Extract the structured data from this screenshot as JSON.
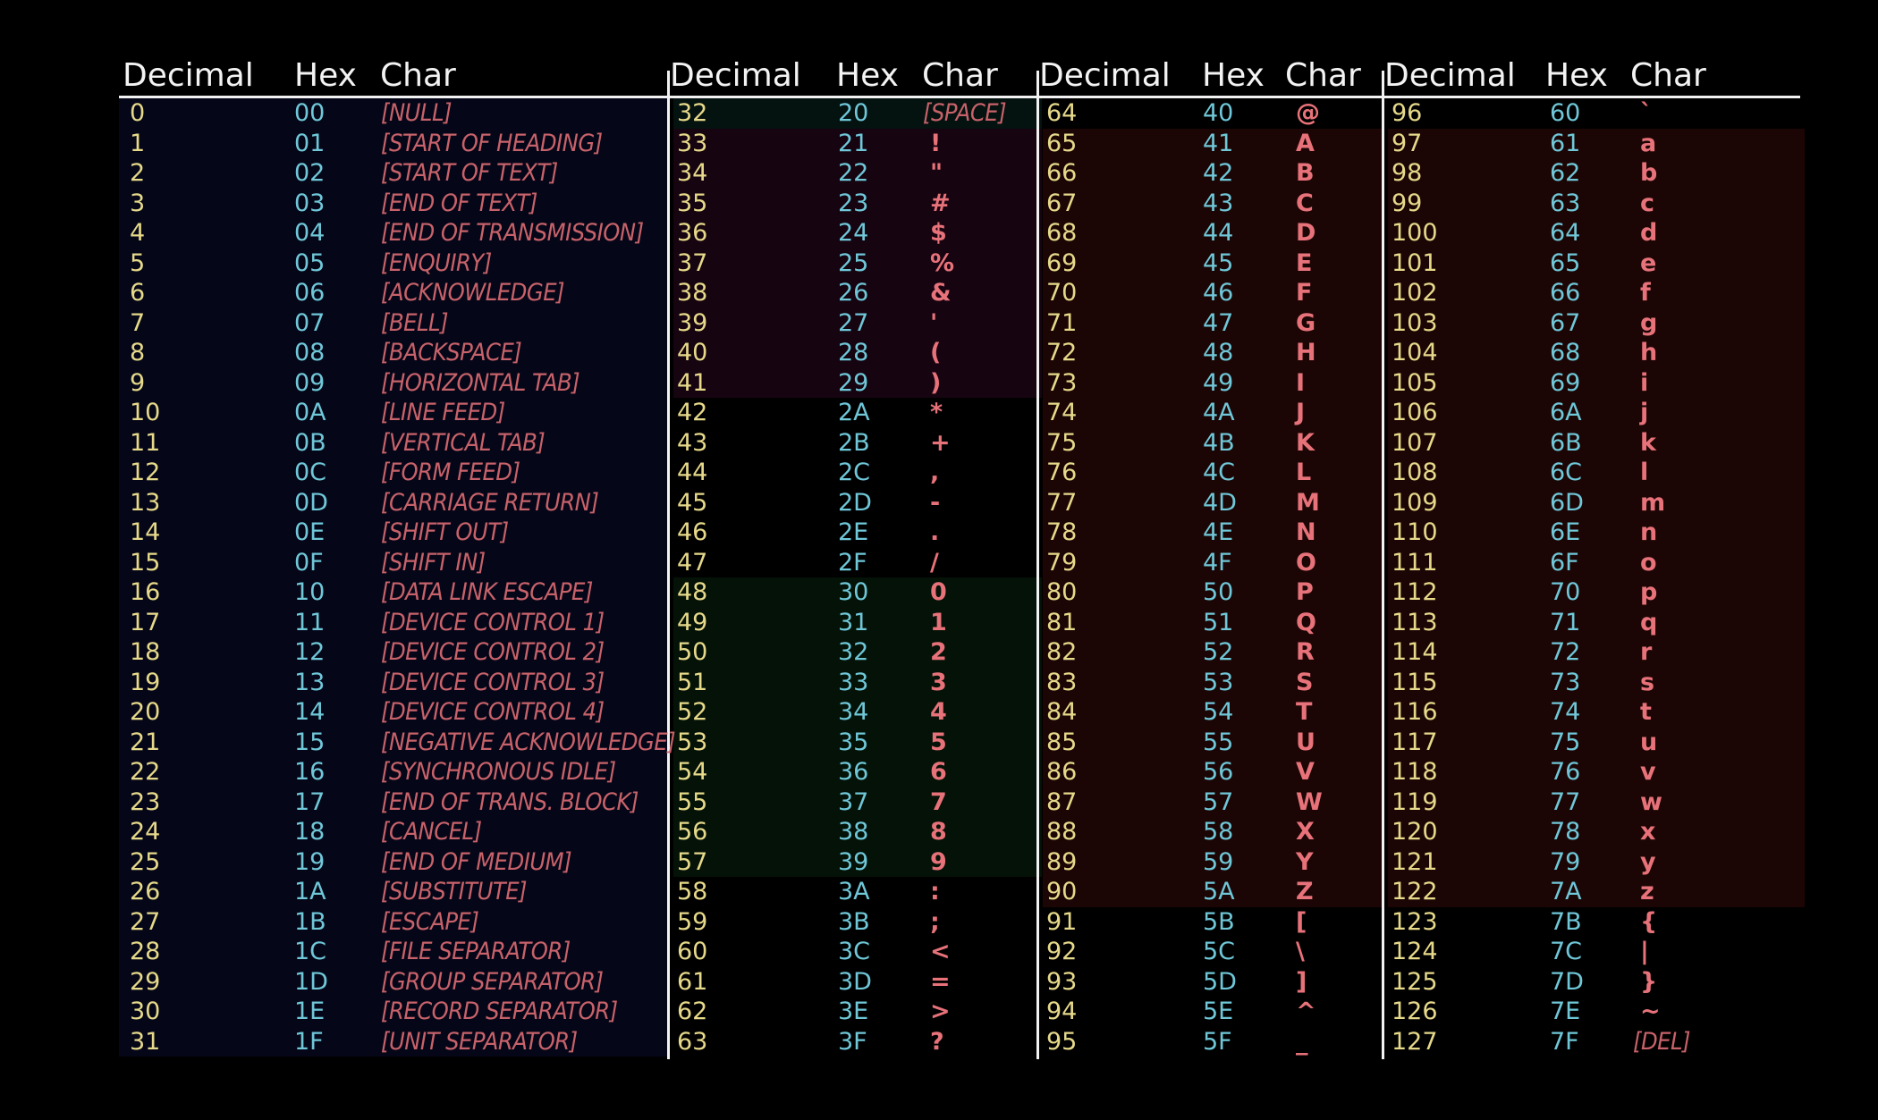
{
  "headers": [
    {
      "decimal": "Decimal",
      "hex": "Hex",
      "char": "Char"
    },
    {
      "decimal": "Decimal",
      "hex": "Hex",
      "char": "Char"
    },
    {
      "decimal": "Decimal",
      "hex": "Hex",
      "char": "Char"
    },
    {
      "decimal": "Decimal",
      "hex": "Hex",
      "char": "Char"
    }
  ],
  "colors": {
    "decimal": "#e6d98a",
    "hex": "#6fc7d8",
    "char": "#e8727a",
    "control": "#c8626a",
    "control_band": "#050718",
    "punct_band": "#160410",
    "digit_band": "#041207",
    "space_band": "#041210",
    "upper_band": "#1c0605"
  },
  "chars": [
    "[NULL]",
    "[START OF HEADING]",
    "[START OF TEXT]",
    "[END OF TEXT]",
    "[END OF TRANSMISSION]",
    "[ENQUIRY]",
    "[ACKNOWLEDGE]",
    "[BELL]",
    "[BACKSPACE]",
    "[HORIZONTAL TAB]",
    "[LINE FEED]",
    "[VERTICAL TAB]",
    "[FORM FEED]",
    "[CARRIAGE RETURN]",
    "[SHIFT OUT]",
    "[SHIFT IN]",
    "[DATA LINK ESCAPE]",
    "[DEVICE CONTROL 1]",
    "[DEVICE CONTROL 2]",
    "[DEVICE CONTROL 3]",
    "[DEVICE CONTROL 4]",
    "[NEGATIVE ACKNOWLEDGE]",
    "[SYNCHRONOUS IDLE]",
    "[END OF TRANS. BLOCK]",
    "[CANCEL]",
    "[END OF MEDIUM]",
    "[SUBSTITUTE]",
    "[ESCAPE]",
    "[FILE SEPARATOR]",
    "[GROUP SEPARATOR]",
    "[RECORD SEPARATOR]",
    "[UNIT SEPARATOR]",
    "[SPACE]",
    "!",
    "\"",
    "#",
    "$",
    "%",
    "&",
    "'",
    "(",
    ")",
    "*",
    "+",
    ",",
    "-",
    ".",
    "/",
    "0",
    "1",
    "2",
    "3",
    "4",
    "5",
    "6",
    "7",
    "8",
    "9",
    ":",
    ";",
    "<",
    "=",
    ">",
    "?",
    "@",
    "A",
    "B",
    "C",
    "D",
    "E",
    "F",
    "G",
    "H",
    "I",
    "J",
    "K",
    "L",
    "M",
    "N",
    "O",
    "P",
    "Q",
    "R",
    "S",
    "T",
    "U",
    "V",
    "W",
    "X",
    "Y",
    "Z",
    "[",
    "\\",
    "]",
    "^",
    "_",
    "`",
    "a",
    "b",
    "c",
    "d",
    "e",
    "f",
    "g",
    "h",
    "i",
    "j",
    "k",
    "l",
    "m",
    "n",
    "o",
    "p",
    "q",
    "r",
    "s",
    "t",
    "u",
    "v",
    "w",
    "x",
    "y",
    "z",
    "{",
    "|",
    "}",
    "~",
    "[DEL]"
  ]
}
